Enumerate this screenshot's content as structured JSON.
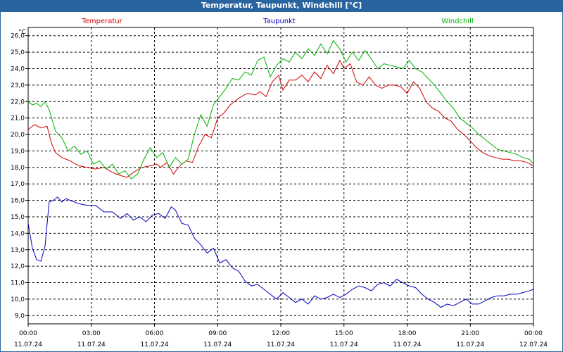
{
  "window": {
    "title": "Temperatur, Taupunkt, Windchill [°C]"
  },
  "chart_data": {
    "type": "line",
    "title": "Temperatur, Taupunkt, Windchill [°C]",
    "ylabel": "°C",
    "xlabel": "",
    "ylim": [
      8.5,
      26.5
    ],
    "yticks": [
      9.0,
      10.0,
      11.0,
      12.0,
      13.0,
      14.0,
      15.0,
      16.0,
      17.0,
      18.0,
      19.0,
      20.0,
      21.0,
      22.0,
      23.0,
      24.0,
      25.0,
      26.0
    ],
    "x_unit": "hours",
    "xlim": [
      0,
      24
    ],
    "xticks": [
      {
        "x": 0,
        "time": "00:00",
        "date": "11.07.24"
      },
      {
        "x": 3,
        "time": "03:00",
        "date": "11.07.24"
      },
      {
        "x": 6,
        "time": "06:00",
        "date": "11.07.24"
      },
      {
        "x": 9,
        "time": "09:00",
        "date": "11.07.24"
      },
      {
        "x": 12,
        "time": "12:00",
        "date": "11.07.24"
      },
      {
        "x": 15,
        "time": "15:00",
        "date": "11.07.24"
      },
      {
        "x": 18,
        "time": "18:00",
        "date": "11.07.24"
      },
      {
        "x": 21,
        "time": "21:00",
        "date": "11.07.24"
      },
      {
        "x": 24,
        "time": "00:00",
        "date": "12.07.24"
      }
    ],
    "grid": true,
    "legend_position": "top",
    "series": [
      {
        "name": "Temperatur",
        "color": "#d00000",
        "x": [
          0,
          0.3,
          0.6,
          0.9,
          1.1,
          1.3,
          1.6,
          2.0,
          2.4,
          2.8,
          3.2,
          3.6,
          4.0,
          4.4,
          4.7,
          5.0,
          5.4,
          5.8,
          6.1,
          6.3,
          6.6,
          6.9,
          7.2,
          7.5,
          7.8,
          8.1,
          8.4,
          8.7,
          9.0,
          9.3,
          9.6,
          10.0,
          10.4,
          10.8,
          11.0,
          11.3,
          11.6,
          11.9,
          12.1,
          12.4,
          12.7,
          13.0,
          13.3,
          13.6,
          13.9,
          14.2,
          14.5,
          14.8,
          15.0,
          15.3,
          15.6,
          15.9,
          16.2,
          16.5,
          16.8,
          17.1,
          17.4,
          17.7,
          18.0,
          18.3,
          18.6,
          18.9,
          19.2,
          19.5,
          19.8,
          20.1,
          20.4,
          20.7,
          21.0,
          21.3,
          21.6,
          21.9,
          22.2,
          22.5,
          22.8,
          23.1,
          23.4,
          23.7,
          24.0
        ],
        "y": [
          20.3,
          20.6,
          20.4,
          20.5,
          19.5,
          18.9,
          18.6,
          18.4,
          18.1,
          18.0,
          17.9,
          18.0,
          17.7,
          17.5,
          17.4,
          17.7,
          18.0,
          18.1,
          18.2,
          18.0,
          18.3,
          17.6,
          18.1,
          18.4,
          18.3,
          19.3,
          20.0,
          19.8,
          21.0,
          21.3,
          21.8,
          22.2,
          22.5,
          22.4,
          22.6,
          22.3,
          23.2,
          23.6,
          22.7,
          23.3,
          23.3,
          23.6,
          23.2,
          23.8,
          23.4,
          24.2,
          23.7,
          24.5,
          24.0,
          24.3,
          23.2,
          23.0,
          23.5,
          23.0,
          22.8,
          23.0,
          23.0,
          22.9,
          22.5,
          23.2,
          22.8,
          22.0,
          21.6,
          21.4,
          21.0,
          20.8,
          20.3,
          20.0,
          19.6,
          19.2,
          18.9,
          18.7,
          18.6,
          18.5,
          18.5,
          18.4,
          18.4,
          18.3,
          18.1
        ]
      },
      {
        "name": "Taupunkt",
        "color": "#0000c0",
        "x": [
          0,
          0.2,
          0.4,
          0.6,
          0.8,
          1.0,
          1.2,
          1.4,
          1.6,
          1.8,
          2.0,
          2.4,
          2.8,
          3.2,
          3.6,
          4.0,
          4.4,
          4.7,
          5.0,
          5.3,
          5.6,
          5.9,
          6.2,
          6.5,
          6.8,
          7.0,
          7.3,
          7.6,
          7.9,
          8.2,
          8.5,
          8.8,
          9.1,
          9.4,
          9.7,
          10.0,
          10.3,
          10.6,
          10.9,
          11.2,
          11.5,
          11.8,
          12.1,
          12.4,
          12.7,
          13.0,
          13.3,
          13.6,
          13.9,
          14.2,
          14.5,
          14.8,
          15.1,
          15.4,
          15.7,
          16.0,
          16.3,
          16.6,
          16.9,
          17.2,
          17.5,
          17.8,
          18.1,
          18.4,
          18.7,
          19.0,
          19.3,
          19.6,
          19.9,
          20.2,
          20.5,
          20.8,
          21.1,
          21.4,
          21.7,
          22.0,
          22.3,
          22.6,
          22.9,
          23.2,
          23.5,
          23.8,
          24.0
        ],
        "y": [
          14.6,
          13.1,
          12.4,
          12.3,
          13.2,
          15.9,
          16.0,
          16.2,
          15.9,
          16.1,
          16.0,
          15.8,
          15.7,
          15.7,
          15.3,
          15.3,
          14.9,
          15.2,
          14.8,
          15.0,
          14.7,
          15.1,
          15.2,
          14.9,
          15.6,
          15.4,
          14.6,
          14.5,
          13.7,
          13.3,
          12.8,
          13.1,
          12.2,
          12.4,
          11.9,
          11.7,
          11.1,
          10.8,
          10.9,
          10.6,
          10.3,
          10.0,
          10.4,
          10.1,
          9.8,
          10.0,
          9.7,
          10.2,
          10.0,
          10.1,
          10.3,
          10.1,
          10.3,
          10.6,
          10.8,
          10.7,
          10.5,
          10.9,
          11.0,
          10.8,
          11.2,
          11.0,
          10.8,
          10.7,
          10.3,
          10.0,
          9.8,
          9.5,
          9.7,
          9.6,
          9.8,
          10.0,
          9.7,
          9.7,
          9.9,
          10.1,
          10.2,
          10.2,
          10.3,
          10.3,
          10.4,
          10.5,
          10.6
        ]
      },
      {
        "name": "Windchill",
        "color": "#00b000",
        "x": [
          0,
          0.2,
          0.4,
          0.6,
          0.8,
          1.0,
          1.3,
          1.6,
          1.9,
          2.2,
          2.5,
          2.8,
          3.1,
          3.4,
          3.7,
          4.0,
          4.3,
          4.6,
          4.9,
          5.2,
          5.5,
          5.8,
          6.1,
          6.4,
          6.7,
          7.0,
          7.3,
          7.6,
          7.9,
          8.2,
          8.5,
          8.8,
          9.1,
          9.4,
          9.7,
          10.0,
          10.3,
          10.6,
          10.9,
          11.2,
          11.5,
          11.8,
          12.1,
          12.4,
          12.7,
          13.0,
          13.3,
          13.6,
          13.9,
          14.2,
          14.5,
          14.8,
          15.1,
          15.4,
          15.7,
          16.0,
          16.3,
          16.6,
          16.9,
          17.2,
          17.5,
          17.8,
          18.1,
          18.4,
          18.7,
          19.0,
          19.3,
          19.6,
          19.9,
          20.2,
          20.5,
          20.8,
          21.1,
          21.4,
          21.7,
          22.0,
          22.3,
          22.6,
          22.9,
          23.2,
          23.5,
          23.8,
          24.0
        ],
        "y": [
          22.0,
          21.8,
          21.9,
          21.7,
          22.0,
          21.5,
          20.2,
          19.8,
          19.0,
          19.3,
          18.8,
          19.0,
          18.2,
          18.4,
          17.9,
          18.2,
          17.6,
          17.8,
          17.3,
          17.6,
          18.5,
          19.2,
          18.6,
          18.9,
          18.0,
          18.6,
          18.2,
          18.5,
          20.0,
          21.2,
          20.5,
          21.8,
          22.3,
          22.8,
          23.4,
          23.3,
          23.8,
          23.6,
          24.5,
          24.7,
          23.5,
          24.2,
          24.6,
          24.4,
          25.0,
          24.6,
          25.2,
          24.8,
          25.5,
          24.9,
          25.7,
          25.2,
          24.4,
          25.0,
          24.5,
          25.1,
          24.6,
          24.0,
          24.3,
          24.2,
          24.1,
          24.0,
          24.5,
          24.0,
          23.8,
          23.4,
          23.0,
          22.5,
          22.0,
          21.6,
          21.0,
          20.7,
          20.4,
          20.0,
          19.7,
          19.4,
          19.1,
          19.0,
          18.9,
          18.8,
          18.6,
          18.5,
          18.2
        ]
      }
    ]
  }
}
